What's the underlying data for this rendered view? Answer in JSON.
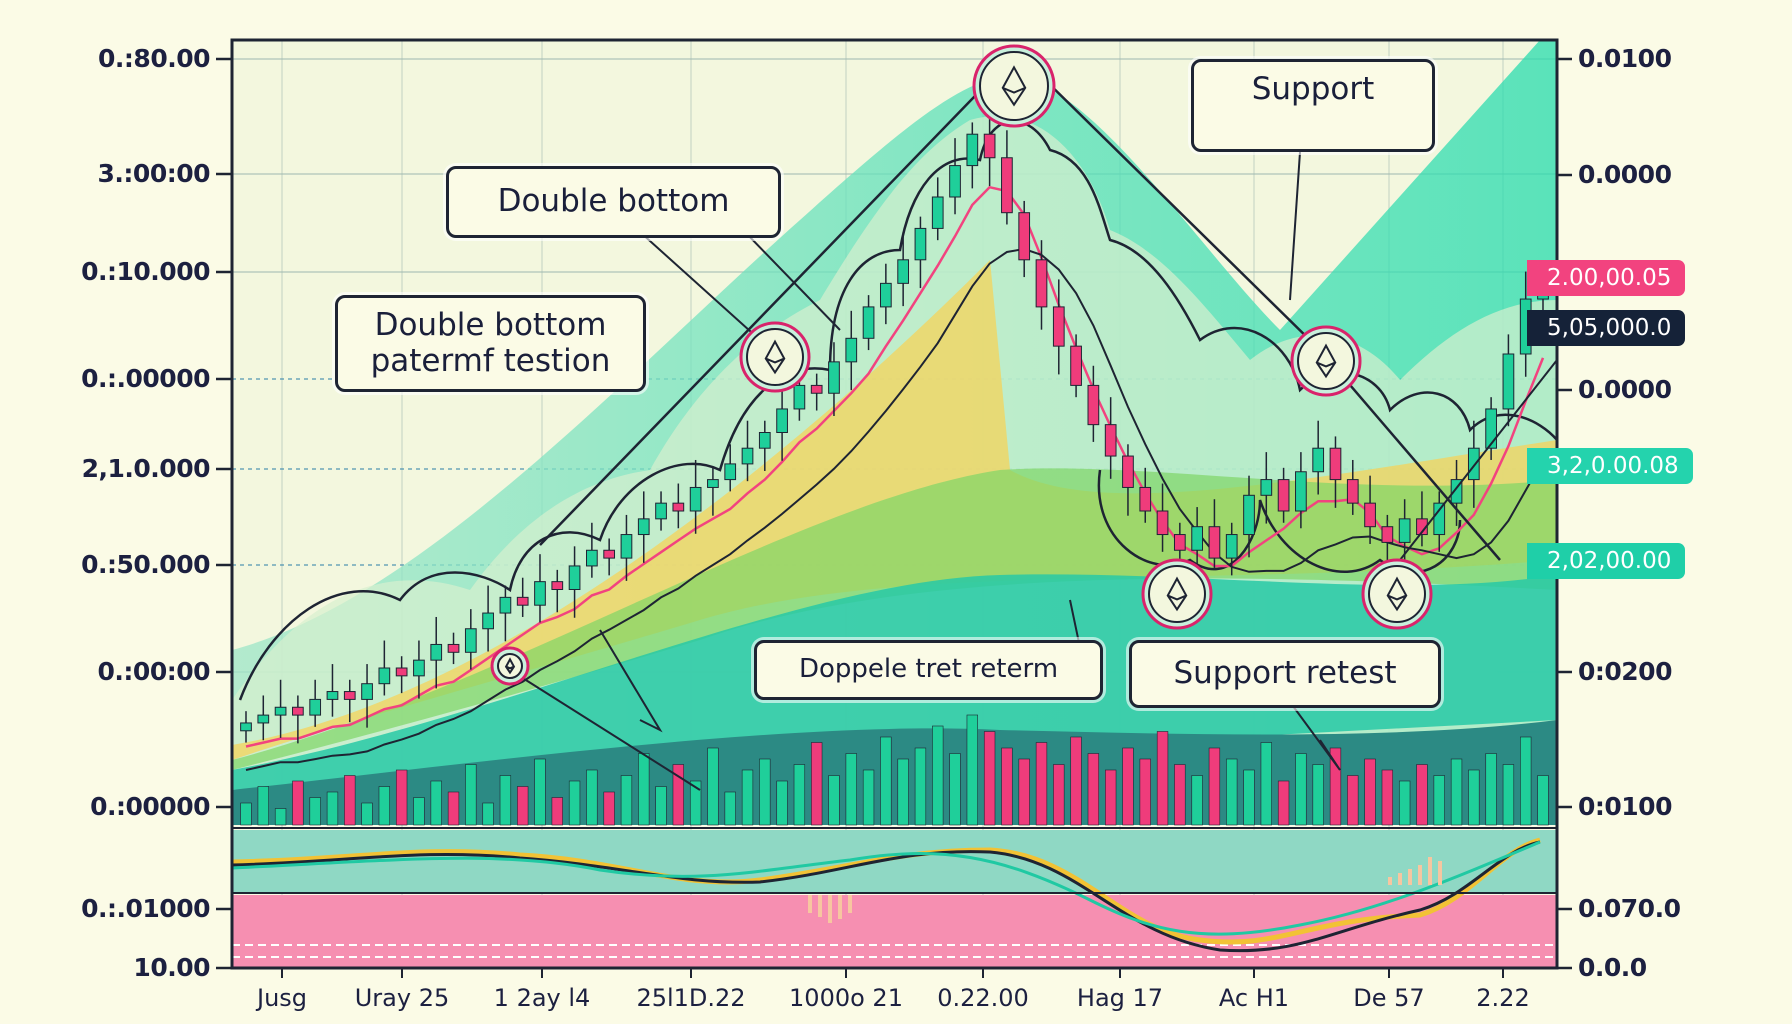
{
  "chart_data": {
    "type": "candlestick",
    "title": "",
    "xlabel": "",
    "ylabel": "",
    "ylim": [
      0,
      100
    ],
    "grid": true,
    "left_axis_ticks": [
      "0.:80.00",
      "3.:00:00",
      "0.:10.000",
      "0.:.00000",
      "2,1.0.000",
      "0.:50.000",
      "0.:00:00",
      "0.:00000",
      "0.:.01000",
      "10.00"
    ],
    "right_axis_ticks": [
      "0.0100",
      "0.0000",
      "0.0000",
      "0:0200",
      "0:0100",
      "0.070.0",
      "0.0.0"
    ],
    "x_tick_labels": [
      "Jusg",
      "Uray 25",
      "1 2ay l4",
      "25l1D.22",
      "1000o 21",
      "0.22.00",
      "Hag 17",
      "Ac H1",
      "De 57",
      "2.22"
    ],
    "price_tags": [
      {
        "label": "2.00,00.05",
        "color": "#f2437f"
      },
      {
        "label": "5,05,000.0",
        "color": "#152238"
      },
      {
        "label": "3,2,0.00.08",
        "color": "#24d3ad"
      },
      {
        "label": "2,02,00.00",
        "color": "#1fcfa8"
      }
    ],
    "closes": [
      13,
      14,
      15,
      14,
      16,
      17,
      16,
      18,
      20,
      19,
      21,
      23,
      22,
      25,
      27,
      29,
      28,
      31,
      30,
      33,
      35,
      34,
      37,
      39,
      41,
      40,
      43,
      44,
      46,
      48,
      50,
      53,
      56,
      55,
      59,
      62,
      66,
      69,
      72,
      76,
      80,
      84,
      88,
      85,
      78,
      72,
      66,
      61,
      56,
      51,
      47,
      43,
      40,
      37,
      35,
      38,
      34,
      37,
      42,
      44,
      40,
      45,
      48,
      44,
      41,
      38,
      36,
      39,
      37,
      41,
      44,
      48,
      53,
      60,
      67,
      70
    ],
    "volume": [
      20,
      35,
      15,
      40,
      25,
      30,
      45,
      20,
      35,
      50,
      25,
      40,
      30,
      55,
      20,
      45,
      35,
      60,
      25,
      40,
      50,
      30,
      45,
      65,
      35,
      55,
      40,
      70,
      30,
      50,
      60,
      40,
      55,
      75,
      45,
      65,
      50,
      80,
      60,
      70,
      90,
      65,
      100,
      85,
      70,
      60,
      75,
      55,
      80,
      65,
      50,
      70,
      60,
      85,
      55,
      45,
      70,
      60,
      50,
      75,
      40,
      65,
      55,
      70,
      45,
      60,
      50,
      40,
      55,
      45,
      60,
      50,
      65,
      55,
      80,
      45
    ],
    "annotations": [
      "Double bottom",
      "Double bottom patermf testion",
      "Support",
      "Doppele tret reterm",
      "Support retest"
    ],
    "colors": {
      "up": "#1fcf9a",
      "down": "#ef3c7b",
      "ma_pink": "#f2437f",
      "ma_dark": "#1e2433",
      "background": "#fbfbe6"
    }
  }
}
